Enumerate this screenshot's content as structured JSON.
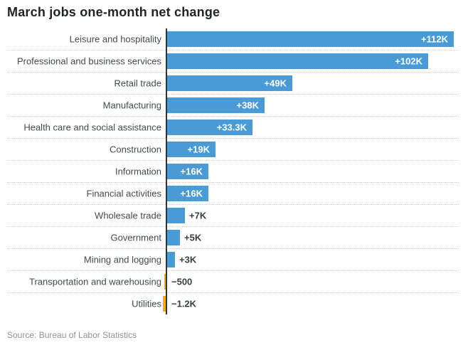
{
  "title": "March jobs one-month net change",
  "source": "Source: Bureau of Labor Statistics",
  "colors": {
    "background": "#ffffff",
    "positive_bar": "#4a9bd5",
    "negative_bar": "#f0b011",
    "title": "#1f2326",
    "category_label": "#434a50",
    "value_label_inside": "#ffffff",
    "value_label_outside": "#383f45",
    "axis_line": "#2f3438",
    "separator": "#cbcbcb",
    "source_text": "#8c9297"
  },
  "chart_data": {
    "type": "bar",
    "orientation": "horizontal",
    "title": "March jobs one-month net change",
    "unit": "jobs, one-month net change (K = thousands)",
    "categories": [
      "Leisure and hospitality",
      "Professional and business services",
      "Retail trade",
      "Manufacturing",
      "Health care and social assistance",
      "Construction",
      "Information",
      "Financial activities",
      "Wholesale trade",
      "Government",
      "Mining and logging",
      "Transportation and warehousing",
      "Utilities"
    ],
    "values": [
      112,
      102,
      49,
      38,
      33.3,
      19,
      16,
      16,
      7,
      5,
      3,
      -0.5,
      -1.2
    ],
    "value_labels": [
      "+112K",
      "+102K",
      "+49K",
      "+38K",
      "+33.3K",
      "+19K",
      "+16K",
      "+16K",
      "+7K",
      "+5K",
      "+3K",
      "−500",
      "−1.2K"
    ],
    "label_inside": [
      true,
      true,
      true,
      true,
      true,
      true,
      true,
      true,
      false,
      false,
      false,
      false,
      false
    ],
    "xlim": [
      -5,
      115
    ],
    "baseline": 0,
    "grid": false,
    "legend_position": "none",
    "source": "Bureau of Labor Statistics"
  }
}
